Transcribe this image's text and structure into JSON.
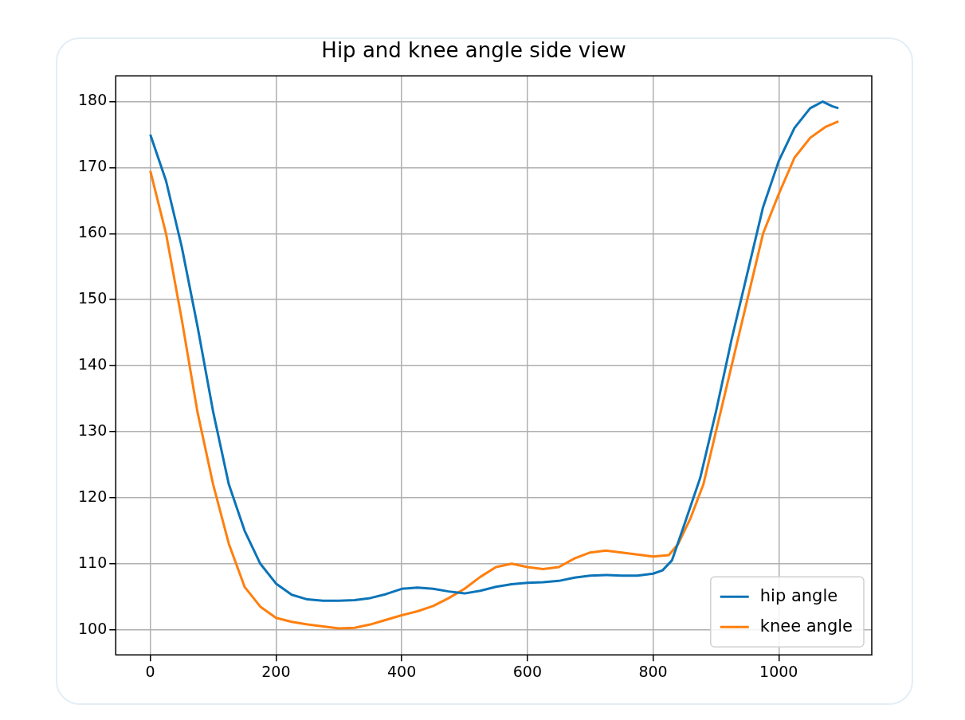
{
  "chart_data": {
    "type": "line",
    "title": "Hip and knee angle side view",
    "xlim": [
      -55,
      1148
    ],
    "ylim": [
      96.2,
      183.9
    ],
    "xticks": [
      0,
      200,
      400,
      600,
      800,
      1000
    ],
    "yticks": [
      100,
      110,
      120,
      130,
      140,
      150,
      160,
      170,
      180
    ],
    "grid": true,
    "legend": "bottom right",
    "marker": "none",
    "line_style": "solid",
    "series": [
      {
        "name": "hip angle",
        "color": "#0b74b8",
        "x": [
          0,
          25,
          50,
          75,
          100,
          125,
          150,
          175,
          200,
          225,
          250,
          275,
          300,
          325,
          350,
          375,
          400,
          425,
          450,
          475,
          500,
          525,
          550,
          575,
          600,
          625,
          650,
          675,
          700,
          725,
          750,
          775,
          800,
          815,
          830,
          850,
          875,
          900,
          925,
          950,
          975,
          1000,
          1025,
          1050,
          1070,
          1085,
          1095
        ],
        "values": [
          175,
          168,
          158,
          146,
          133,
          122,
          115,
          110,
          107,
          105.3,
          104.6,
          104.4,
          104.4,
          104.5,
          104.8,
          105.4,
          106.2,
          106.4,
          106.2,
          105.8,
          105.5,
          105.9,
          106.5,
          106.9,
          107.1,
          107.2,
          107.4,
          107.9,
          108.2,
          108.3,
          108.2,
          108.2,
          108.5,
          109,
          110.5,
          116,
          123,
          133,
          144,
          154,
          164,
          171,
          176,
          179,
          180,
          179.3,
          179
        ]
      },
      {
        "name": "knee angle",
        "color": "#ff7f0e",
        "x": [
          0,
          25,
          50,
          75,
          100,
          125,
          150,
          175,
          200,
          225,
          250,
          275,
          300,
          325,
          350,
          375,
          400,
          425,
          450,
          475,
          500,
          525,
          550,
          575,
          600,
          625,
          650,
          675,
          700,
          725,
          750,
          775,
          800,
          825,
          840,
          860,
          880,
          900,
          925,
          950,
          975,
          1000,
          1025,
          1050,
          1075,
          1095
        ],
        "values": [
          169.5,
          160,
          147,
          133,
          122,
          113,
          106.5,
          103.5,
          101.8,
          101.2,
          100.8,
          100.5,
          100.2,
          100.3,
          100.8,
          101.5,
          102.2,
          102.8,
          103.6,
          104.8,
          106.2,
          108,
          109.5,
          110,
          109.5,
          109.2,
          109.5,
          110.8,
          111.7,
          112,
          111.7,
          111.4,
          111.1,
          111.3,
          113,
          117,
          122,
          130,
          140,
          150,
          160,
          166,
          171.5,
          174.5,
          176.2,
          177
        ]
      }
    ]
  }
}
